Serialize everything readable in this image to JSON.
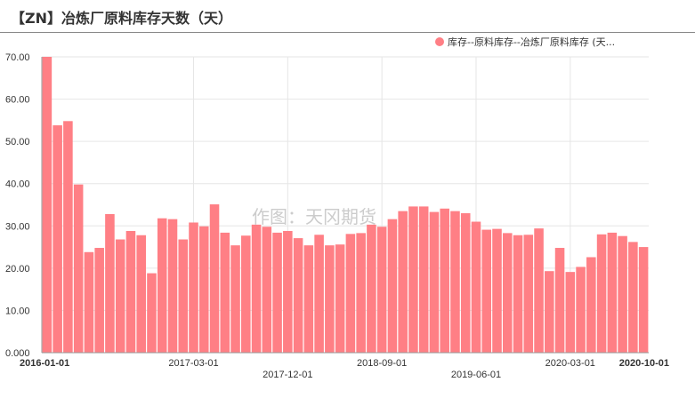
{
  "header": {
    "title": "【ZN】冶炼厂原料库存天数（天）"
  },
  "legend": {
    "label": "库存--原料库存--冶炼厂原料库存 (天...",
    "color": "#ff7f85"
  },
  "watermark": "作图：天冈期货",
  "chart_data": {
    "type": "bar",
    "title": "【ZN】冶炼厂原料库存天数（天）",
    "ylim": [
      0,
      70
    ],
    "y_ticks": [
      "0.000",
      "10.00",
      "20.00",
      "30.00",
      "40.00",
      "50.00",
      "60.00",
      "70.00"
    ],
    "x_tick_labels": [
      {
        "label": "2016-01-01",
        "index": 0,
        "row": 0,
        "bold": true
      },
      {
        "label": "2017-03-01",
        "index": 14,
        "row": 0,
        "bold": false
      },
      {
        "label": "2017-12-01",
        "index": 23,
        "row": 1,
        "bold": false
      },
      {
        "label": "2018-09-01",
        "index": 32,
        "row": 0,
        "bold": false
      },
      {
        "label": "2019-06-01",
        "index": 41,
        "row": 1,
        "bold": false
      },
      {
        "label": "2020-03-01",
        "index": 50,
        "row": 0,
        "bold": false
      },
      {
        "label": "2020-10-01",
        "index": 57,
        "row": 0,
        "bold": true
      }
    ],
    "grid": true,
    "series": [
      {
        "name": "库存--原料库存--冶炼厂原料库存 (天...",
        "color": "#ff7f85",
        "values": [
          71.0,
          53.8,
          54.8,
          39.8,
          23.8,
          24.8,
          32.8,
          26.8,
          28.8,
          27.8,
          18.8,
          31.8,
          31.6,
          26.8,
          30.8,
          29.9,
          35.1,
          28.4,
          25.4,
          27.7,
          30.3,
          29.8,
          28.4,
          28.8,
          27.1,
          25.4,
          27.9,
          25.4,
          25.6,
          28.1,
          28.3,
          30.3,
          29.8,
          31.6,
          33.5,
          34.6,
          34.6,
          33.3,
          34.1,
          33.5,
          33.0,
          31.0,
          29.1,
          29.3,
          28.3,
          27.8,
          27.9,
          29.4,
          19.3,
          24.8,
          19.1,
          20.3,
          22.6,
          28.0,
          28.4,
          27.6,
          26.2,
          25.0
        ]
      }
    ]
  }
}
